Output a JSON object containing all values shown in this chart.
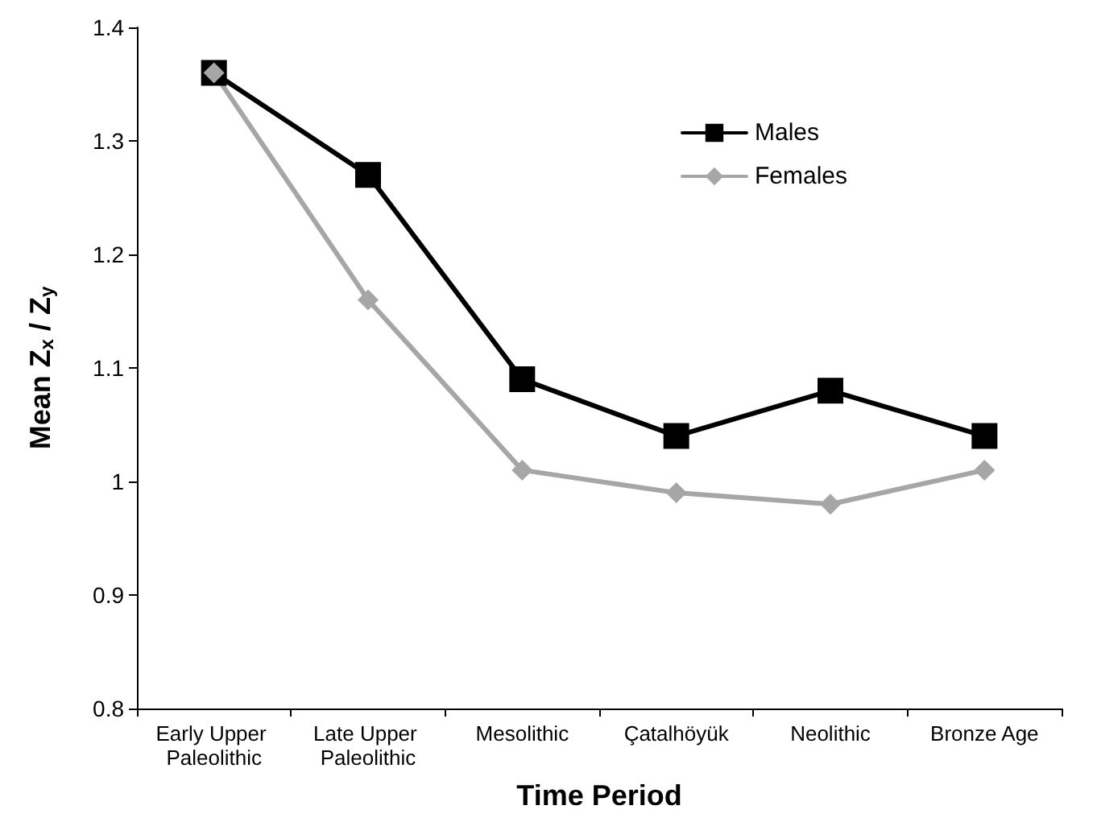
{
  "chart_data": {
    "type": "line",
    "xlabel": "Time Period",
    "ylabel": "Mean Z$_{x}$ / Z$_{y}$",
    "categories": [
      "Early Upper Paleolithic",
      "Late Upper Paleolithic",
      "Mesolithic",
      "Çatalhöyük",
      "Neolithic",
      "Bronze Age"
    ],
    "series": [
      {
        "name": "Males",
        "color": "#000000",
        "marker": "square",
        "values": [
          1.36,
          1.27,
          1.09,
          1.04,
          1.08,
          1.04
        ]
      },
      {
        "name": "Females",
        "color": "#a6a6a6",
        "marker": "diamond",
        "values": [
          1.36,
          1.16,
          1.01,
          0.99,
          0.98,
          1.01
        ]
      }
    ],
    "ylim": [
      0.8,
      1.4
    ],
    "yticks": [
      0.8,
      0.9,
      1,
      1.1,
      1.2,
      1.3,
      1.4
    ],
    "grid": false,
    "legend": "top right",
    "line_style": "solid"
  }
}
